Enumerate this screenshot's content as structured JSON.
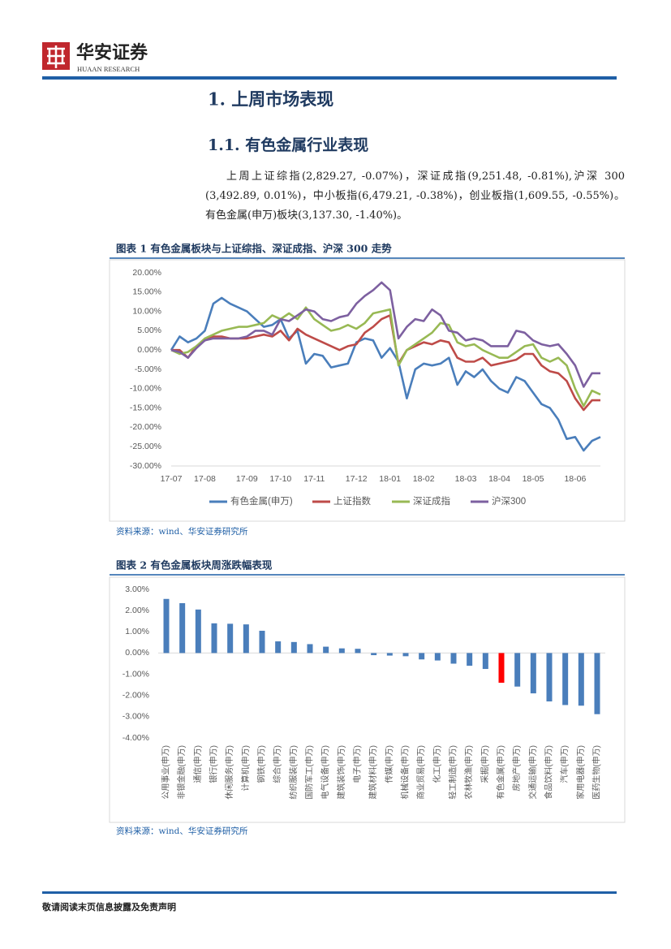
{
  "header": {
    "brand": "华安证券",
    "sub": "HUAAN RESEARCH"
  },
  "heading1": "1. 上周市场表现",
  "heading2": "1.1. 有色金属行业表现",
  "paragraph": "上周上证综指(2,829.27, -0.07%)，深证成指(9,251.48, -0.81%),沪深 300 (3,492.89, 0.01%)，中小板指(6,479.21, -0.38%)，创业板指(1,609.55, -0.55%)。有色金属(申万)板块(3,137.30, -1.40%)。",
  "footer": "敬请阅读末页信息披露及免责声明",
  "chart_data": [
    {
      "type": "line",
      "title": "图表 1 有色金属板块与上证综指、深证成指、沪深 300 走势",
      "source": "资料来源：wind、华安证券研究所",
      "categories": [
        "17-07",
        null,
        null,
        null,
        "17-08",
        null,
        null,
        null,
        null,
        "17-09",
        null,
        null,
        null,
        "17-10",
        null,
        null,
        null,
        "17-11",
        null,
        null,
        null,
        null,
        "17-12",
        null,
        null,
        null,
        "18-01",
        null,
        null,
        null,
        "18-02",
        null,
        null,
        null,
        null,
        "18-03",
        null,
        null,
        null,
        "18-04",
        null,
        null,
        null,
        "18-05",
        null,
        null,
        null,
        null,
        "18-06",
        null,
        null,
        null
      ],
      "ylim": [
        -30,
        20
      ],
      "yticks": [
        {
          "value": 20,
          "label": "20.00%"
        },
        {
          "value": 15,
          "label": "15.00%"
        },
        {
          "value": 10,
          "label": "10.00%"
        },
        {
          "value": 5,
          "label": "5.00%"
        },
        {
          "value": 0,
          "label": "0.00%"
        },
        {
          "value": -5,
          "label": "-5.00%"
        },
        {
          "value": -10,
          "label": "-10.00%"
        },
        {
          "value": -15,
          "label": "-15.00%"
        },
        {
          "value": -20,
          "label": "-20.00%"
        },
        {
          "value": -25,
          "label": "-25.00%"
        },
        {
          "value": -30,
          "label": "-30.00%"
        }
      ],
      "series": [
        {
          "name": "有色金属(申万)",
          "color": "#4a7ebb",
          "values": [
            0,
            3.5,
            2,
            3,
            5,
            12,
            13.5,
            12,
            11,
            10,
            8,
            6,
            6.5,
            8,
            3,
            5,
            -3.5,
            -1,
            -1.5,
            -4.5,
            -4,
            -3.5,
            2,
            3,
            2.5,
            -2,
            0.5,
            -3,
            -12.5,
            -5,
            -3.5,
            -4,
            -3.5,
            -2,
            -9,
            -5.5,
            -7,
            -5,
            -8,
            -10,
            -11,
            -7,
            -8,
            -11,
            -14,
            -15,
            -18,
            -23,
            -22.5,
            -26,
            -23.5,
            -22.5
          ]
        },
        {
          "name": "上证指数",
          "color": "#be4b48",
          "values": [
            0,
            0,
            -2,
            1,
            2.5,
            3.5,
            3.5,
            3,
            3,
            3,
            3.5,
            4,
            3.5,
            5,
            2.5,
            5.5,
            4,
            3,
            2,
            1,
            0,
            1,
            1.5,
            4.5,
            6,
            8,
            9,
            -3.5,
            0,
            1,
            2,
            1.5,
            2.5,
            2,
            -2,
            -3,
            -3,
            -2,
            -4,
            -3.5,
            -3,
            -2.5,
            -1,
            -1,
            -4,
            -5.5,
            -6,
            -8,
            -12.5,
            -15.5,
            -13,
            -13
          ]
        },
        {
          "name": "深证成指",
          "color": "#98b954",
          "values": [
            0,
            -1,
            -0.5,
            1,
            3,
            4,
            5,
            5.5,
            6,
            6,
            6.5,
            7,
            9,
            8,
            9.5,
            8,
            11,
            8,
            6.5,
            5,
            5.5,
            6.5,
            5.5,
            7,
            9.5,
            10,
            10.5,
            -4,
            0,
            1.5,
            3,
            4.5,
            7,
            6.5,
            2,
            1,
            1.5,
            0,
            -1,
            -2,
            -2,
            -0.5,
            1,
            1.5,
            -2,
            -3,
            -2,
            -4,
            -10,
            -14.5,
            -10.5,
            -11.5
          ]
        },
        {
          "name": "沪深300",
          "color": "#7d60a0",
          "values": [
            0,
            -0.5,
            -2,
            0.5,
            2.5,
            3,
            3,
            3,
            3,
            3.5,
            5,
            5,
            4,
            8,
            7.5,
            9,
            10.5,
            10,
            8,
            7.5,
            8.5,
            9,
            12,
            14,
            15.5,
            17.5,
            15.5,
            3,
            6,
            8,
            7.5,
            10.5,
            9,
            5,
            4.5,
            2.5,
            3,
            2.5,
            1,
            1,
            1,
            5,
            4.5,
            2.5,
            1.5,
            1,
            1.5,
            -1,
            -4,
            -9.5,
            -6,
            -6
          ]
        }
      ]
    },
    {
      "type": "bar",
      "title": "图表 2 有色金属板块周涨跌幅表现",
      "source": "资料来源：wind、华安证券研究所",
      "categories": [
        "公用事业(申万)",
        "非银金融(申万)",
        "通信(申万)",
        "银行(申万)",
        "休闲服务(申万)",
        "计算机(申万)",
        "钢铁(申万)",
        "综合(申万)",
        "纺织服装(申万)",
        "国防军工(申万)",
        "电气设备(申万)",
        "建筑装饰(申万)",
        "电子(申万)",
        "建筑材料(申万)",
        "传媒(申万)",
        "机械设备(申万)",
        "商业贸易(申万)",
        "化工(申万)",
        "轻工制造(申万)",
        "农林牧渔(申万)",
        "采掘(申万)",
        "有色金属(申万)",
        "房地产(申万)",
        "交通运输(申万)",
        "食品饮料(申万)",
        "汽车(申万)",
        "家用电器(申万)",
        "医药生物(申万)"
      ],
      "values": [
        2.55,
        2.35,
        2.05,
        1.4,
        1.38,
        1.35,
        1.05,
        0.55,
        0.52,
        0.42,
        0.3,
        0.22,
        0.2,
        -0.1,
        -0.12,
        -0.15,
        -0.3,
        -0.35,
        -0.5,
        -0.6,
        -0.75,
        -1.4,
        -1.58,
        -1.9,
        -2.28,
        -2.45,
        -2.48,
        -2.88
      ],
      "colors": [
        "#4a7ebb",
        "#4a7ebb",
        "#4a7ebb",
        "#4a7ebb",
        "#4a7ebb",
        "#4a7ebb",
        "#4a7ebb",
        "#4a7ebb",
        "#4a7ebb",
        "#4a7ebb",
        "#4a7ebb",
        "#4a7ebb",
        "#4a7ebb",
        "#4a7ebb",
        "#4a7ebb",
        "#4a7ebb",
        "#4a7ebb",
        "#4a7ebb",
        "#4a7ebb",
        "#4a7ebb",
        "#4a7ebb",
        "#ff0000",
        "#4a7ebb",
        "#4a7ebb",
        "#4a7ebb",
        "#4a7ebb",
        "#4a7ebb",
        "#4a7ebb"
      ],
      "ylim": [
        -4,
        3
      ],
      "yticks": [
        {
          "value": 3,
          "label": "3.00%"
        },
        {
          "value": 2,
          "label": "2.00%"
        },
        {
          "value": 1,
          "label": "1.00%"
        },
        {
          "value": 0,
          "label": "0.00%"
        },
        {
          "value": -1,
          "label": "-1.00%"
        },
        {
          "value": -2,
          "label": "-2.00%"
        },
        {
          "value": -3,
          "label": "-3.00%"
        },
        {
          "value": -4,
          "label": "-4.00%"
        }
      ]
    }
  ]
}
